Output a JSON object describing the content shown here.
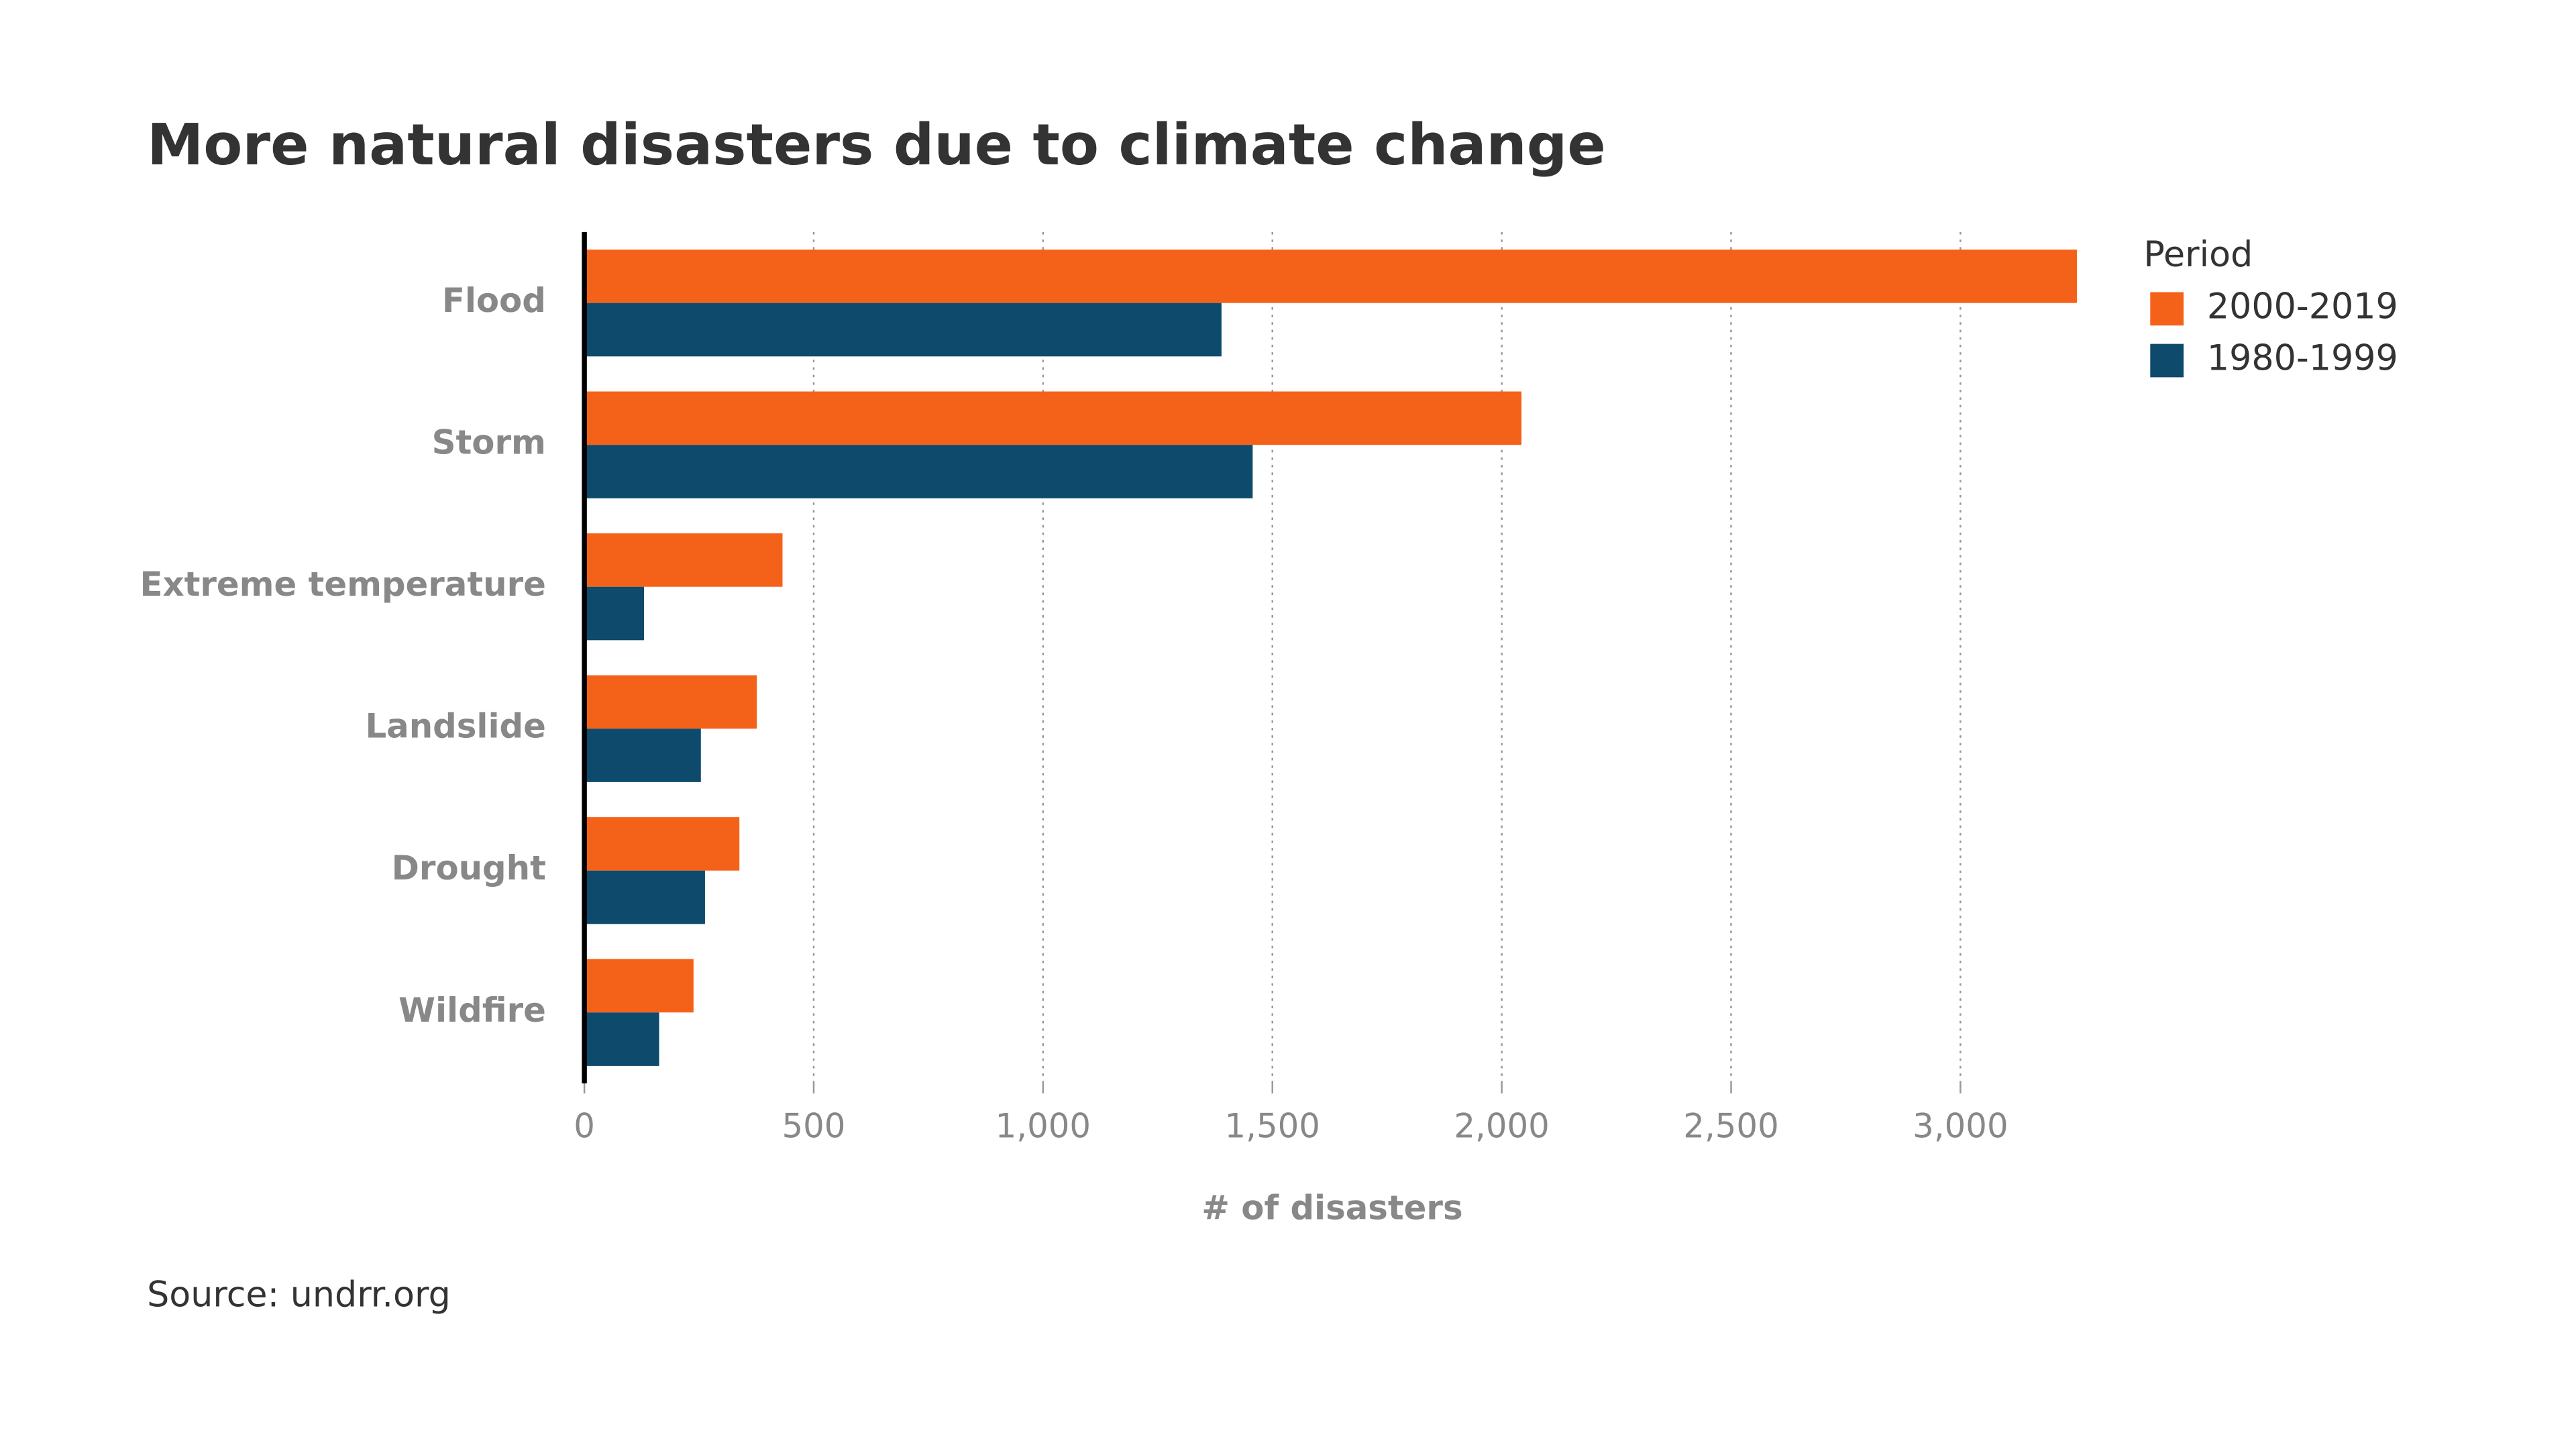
{
  "chart_data": {
    "type": "bar",
    "orientation": "horizontal",
    "title": "More natural disasters due to climate change",
    "x_label": "# of disasters",
    "source": "Source: undrr.org",
    "legend_title": "Period",
    "legend_position": "top-right",
    "grid": true,
    "categories": [
      "Flood",
      "Storm",
      "Extreme temperature",
      "Landslide",
      "Drought",
      "Wildfire"
    ],
    "series": [
      {
        "name": "2000-2019",
        "color": "#f4621a",
        "values": [
          3254,
          2043,
          432,
          376,
          338,
          238
        ]
      },
      {
        "name": "1980-1999",
        "color": "#0e4a6b",
        "values": [
          1389,
          1457,
          130,
          254,
          263,
          163
        ]
      }
    ],
    "xlim": [
      0,
      3290
    ],
    "xticks": [
      0,
      500,
      {
        "value": 1000,
        "label": "1,000"
      },
      {
        "value": 1500,
        "label": "1,500"
      },
      {
        "value": 2000,
        "label": "2,000"
      },
      {
        "value": 2500,
        "label": "2,500"
      },
      {
        "value": 3000,
        "label": "3,000"
      }
    ]
  }
}
